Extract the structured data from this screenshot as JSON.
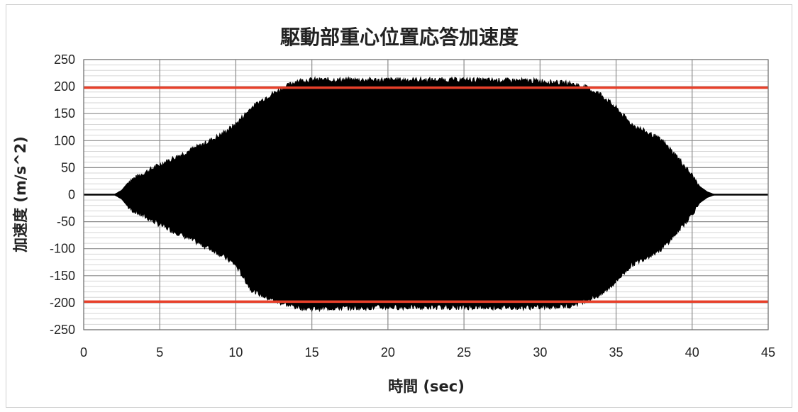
{
  "chart_data": {
    "type": "area",
    "title": "駆動部重心位置応答加速度",
    "xlabel": "時間 (sec)",
    "ylabel": "加速度 (m/s^2)",
    "xlim": [
      0,
      45
    ],
    "ylim": [
      -250,
      250
    ],
    "x_ticks": [
      "0",
      "5",
      "10",
      "15",
      "20",
      "25",
      "30",
      "35",
      "40",
      "45"
    ],
    "y_ticks": [
      "250",
      "200",
      "150",
      "100",
      "50",
      "0",
      "-50",
      "-100",
      "-150",
      "-200",
      "-250"
    ],
    "grid": true,
    "series": [
      {
        "color": "#000000",
        "x": [
          0,
          2,
          2.5,
          3,
          5,
          8,
          9,
          10,
          11,
          12,
          13,
          14,
          15,
          20,
          25,
          30,
          32,
          33,
          34,
          35,
          36,
          38,
          39,
          40,
          40.5,
          41,
          41.5,
          45
        ],
        "upper": [
          0,
          0,
          8,
          25,
          55,
          95,
          110,
          130,
          160,
          180,
          195,
          210,
          212,
          212,
          212,
          210,
          205,
          198,
          185,
          160,
          130,
          100,
          70,
          35,
          15,
          5,
          0,
          0
        ],
        "lower": [
          0,
          0,
          -8,
          -25,
          -55,
          -95,
          -110,
          -130,
          -175,
          -190,
          -200,
          -208,
          -210,
          -208,
          -208,
          -208,
          -205,
          -195,
          -185,
          -160,
          -130,
          -100,
          -70,
          -35,
          -15,
          -5,
          0,
          0
        ]
      }
    ],
    "reference_lines": [
      {
        "y": 198,
        "color": "#e8402a"
      },
      {
        "y": -198,
        "color": "#e8402a"
      }
    ]
  }
}
